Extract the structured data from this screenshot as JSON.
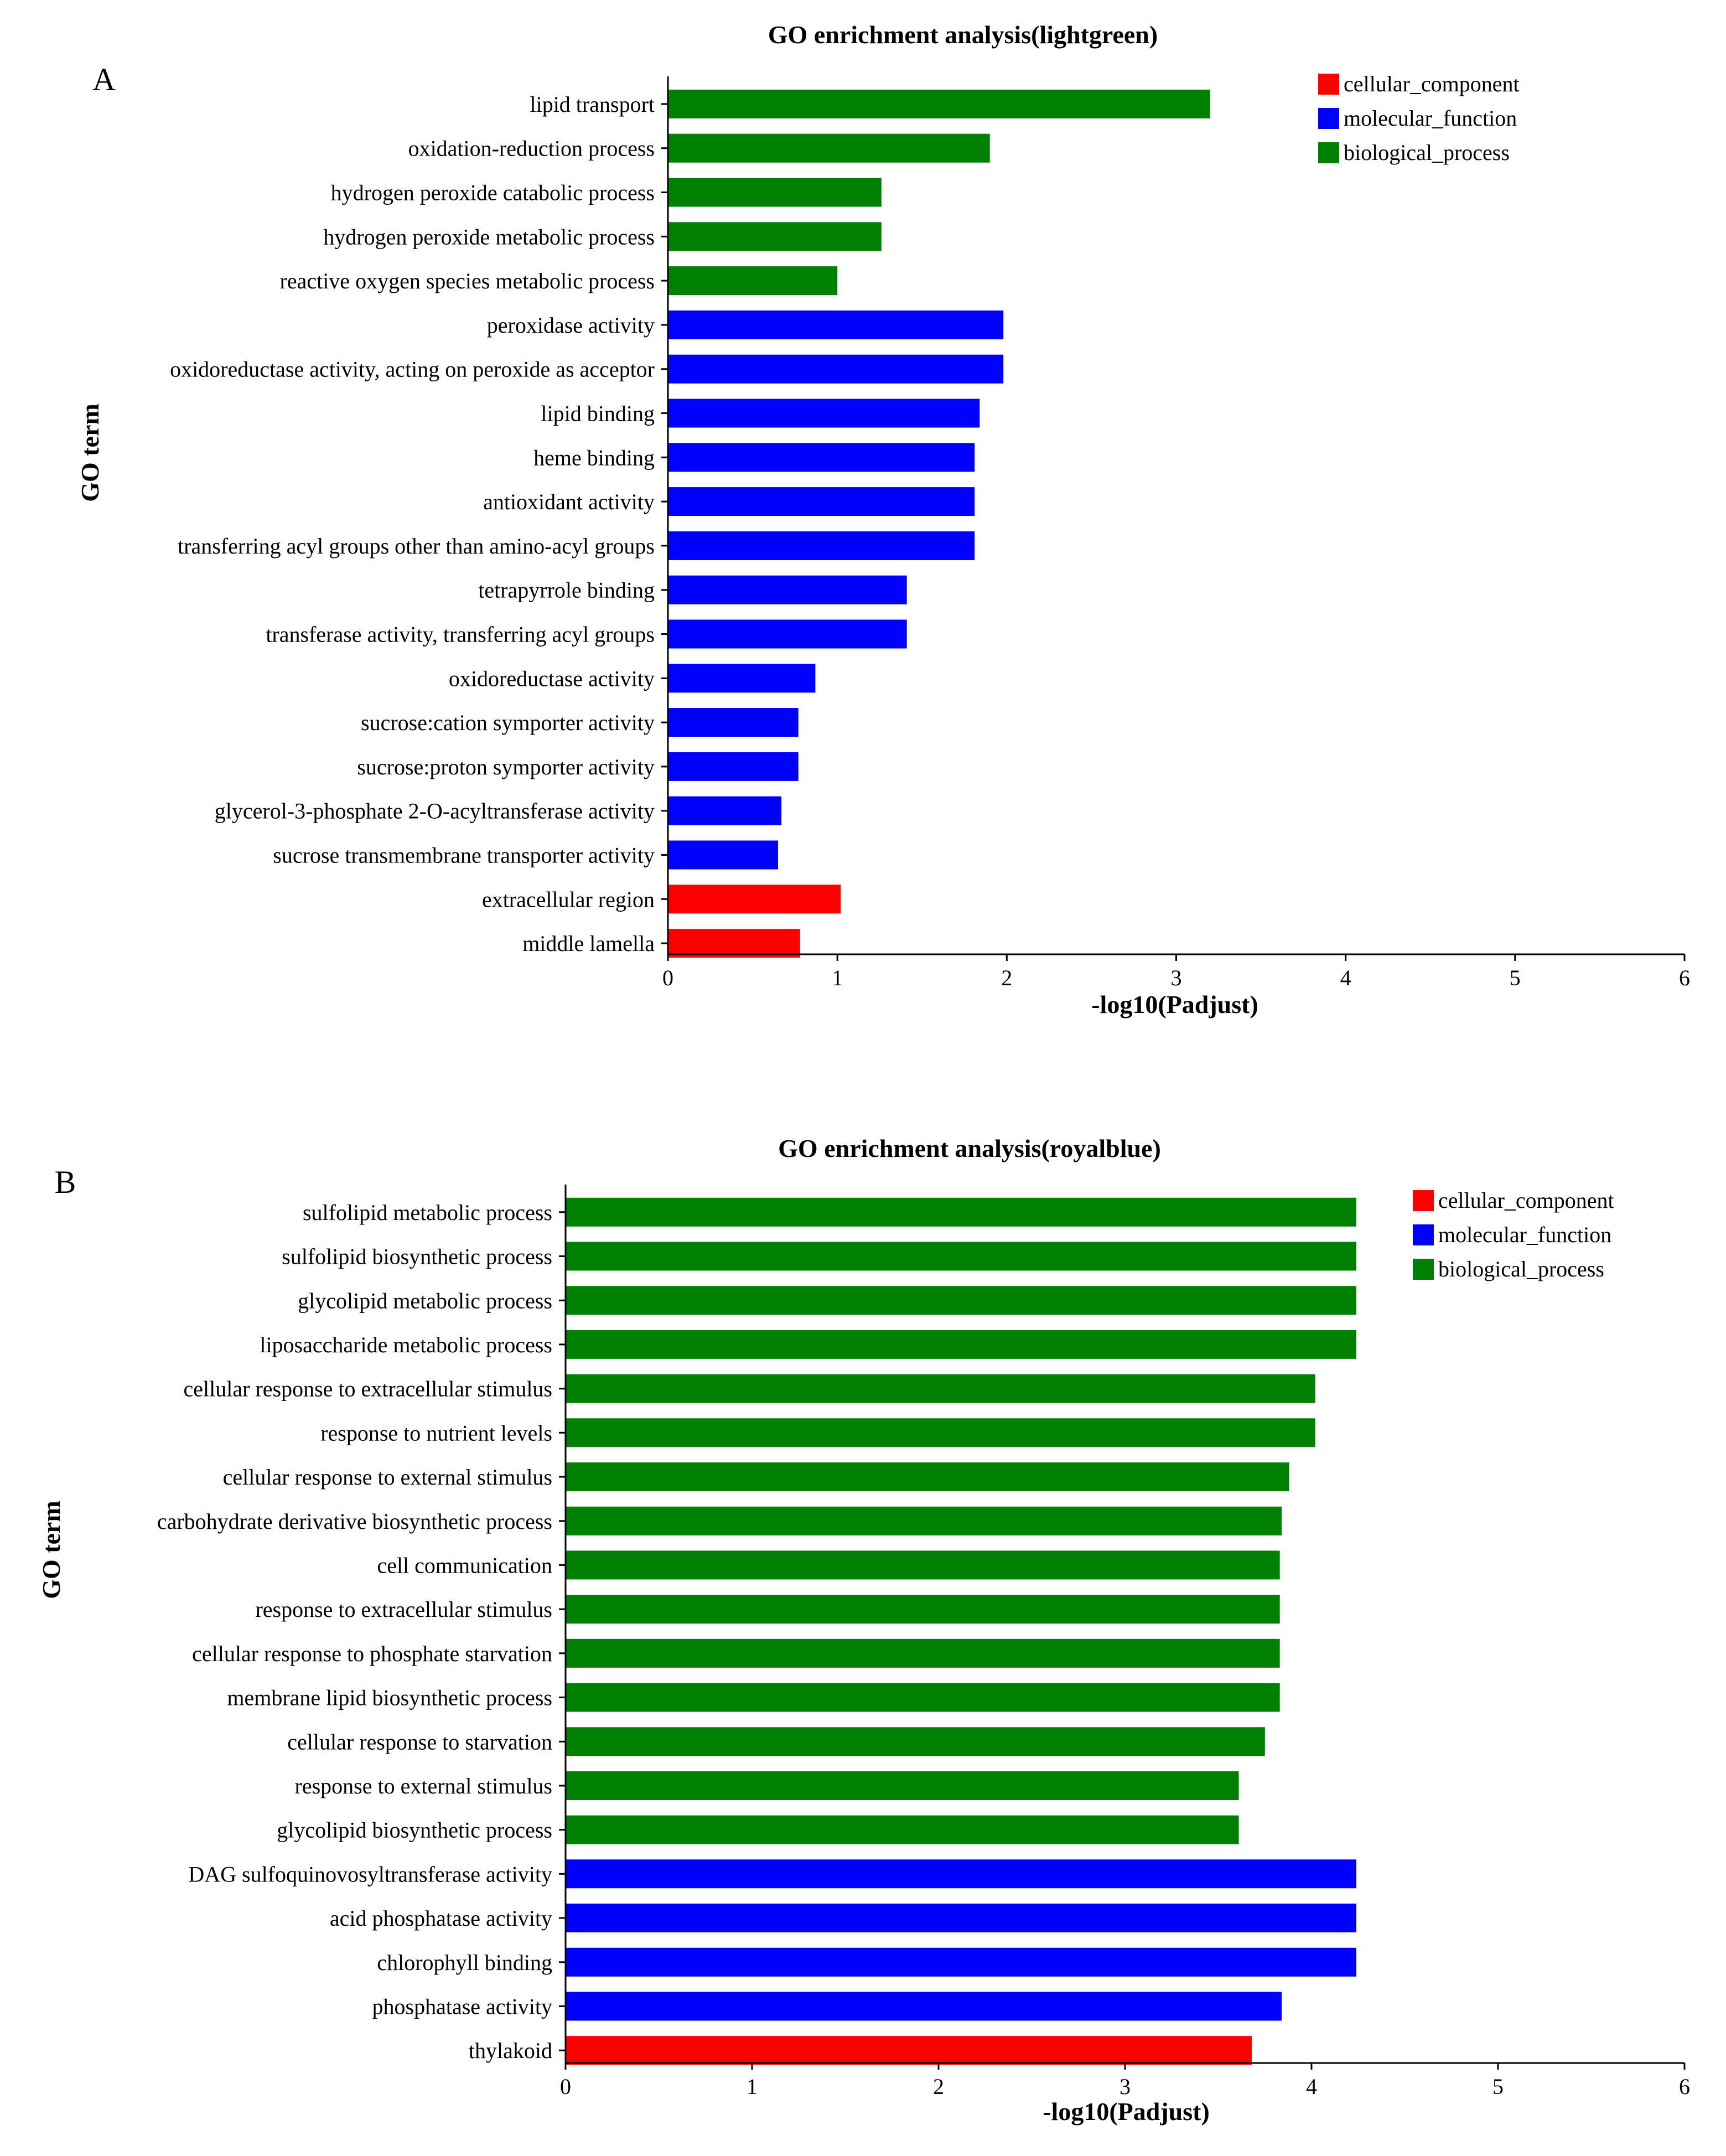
{
  "colors": {
    "cellular_component": "#ff0000",
    "molecular_function": "#0000ff",
    "biological_process": "#008000",
    "axis": "#000000"
  },
  "chart_data": [
    {
      "panel_label": "A",
      "type": "bar",
      "orientation": "horizontal",
      "title": "GO enrichment analysis(lightgreen)",
      "xlabel": "-log10(Padjust)",
      "ylabel": "GO term",
      "xlim": [
        0,
        6
      ],
      "xticks": [
        "0",
        "1",
        "2",
        "3",
        "4",
        "5",
        "6"
      ],
      "grid": false,
      "legend_position": "top-right",
      "legend": [
        {
          "label": "cellular_component",
          "key": "cellular_component"
        },
        {
          "label": "molecular_function",
          "key": "molecular_function"
        },
        {
          "label": "biological_process",
          "key": "biological_process"
        }
      ],
      "categories": [
        "lipid transport",
        "oxidation-reduction process",
        "hydrogen peroxide catabolic process",
        "hydrogen peroxide metabolic process",
        "reactive oxygen species metabolic process",
        "peroxidase activity",
        "oxidoreductase activity, acting on peroxide as acceptor",
        "lipid binding",
        "heme binding",
        "antioxidant activity",
        "transferring acyl groups other than amino-acyl groups",
        "tetrapyrrole binding",
        "transferase activity, transferring acyl groups",
        "oxidoreductase activity",
        "sucrose:cation symporter activity",
        "sucrose:proton symporter activity",
        "glycerol-3-phosphate 2-O-acyltransferase activity",
        "sucrose transmembrane transporter activity",
        "extracellular region",
        "middle lamella"
      ],
      "values": [
        3.2,
        1.9,
        1.26,
        1.26,
        1.0,
        1.98,
        1.98,
        1.84,
        1.81,
        1.81,
        1.81,
        1.41,
        1.41,
        0.87,
        0.77,
        0.77,
        0.67,
        0.65,
        1.02,
        0.78
      ],
      "groups": [
        "biological_process",
        "biological_process",
        "biological_process",
        "biological_process",
        "biological_process",
        "molecular_function",
        "molecular_function",
        "molecular_function",
        "molecular_function",
        "molecular_function",
        "molecular_function",
        "molecular_function",
        "molecular_function",
        "molecular_function",
        "molecular_function",
        "molecular_function",
        "molecular_function",
        "molecular_function",
        "cellular_component",
        "cellular_component"
      ]
    },
    {
      "panel_label": "B",
      "type": "bar",
      "orientation": "horizontal",
      "title": "GO enrichment analysis(royalblue)",
      "xlabel": "-log10(Padjust)",
      "ylabel": "GO term",
      "xlim": [
        0,
        6
      ],
      "xticks": [
        "0",
        "1",
        "2",
        "3",
        "4",
        "5",
        "6"
      ],
      "grid": false,
      "legend_position": "top-right",
      "legend": [
        {
          "label": "cellular_component",
          "key": "cellular_component"
        },
        {
          "label": "molecular_function",
          "key": "molecular_function"
        },
        {
          "label": "biological_process",
          "key": "biological_process"
        }
      ],
      "categories": [
        "sulfolipid metabolic process",
        "sulfolipid biosynthetic process",
        "glycolipid metabolic process",
        "liposaccharide metabolic process",
        "cellular response to extracellular stimulus",
        "response to nutrient levels",
        "cellular response to external stimulus",
        "carbohydrate derivative biosynthetic process",
        "cell communication",
        "response to extracellular stimulus",
        "cellular response to phosphate starvation",
        "membrane lipid biosynthetic process",
        "cellular response to starvation",
        "response to external stimulus",
        "glycolipid biosynthetic process",
        "DAG sulfoquinovosyltransferase activity",
        "acid phosphatase activity",
        "chlorophyll binding",
        "phosphatase activity",
        "thylakoid"
      ],
      "values": [
        4.24,
        4.24,
        4.24,
        4.24,
        4.02,
        4.02,
        3.88,
        3.84,
        3.83,
        3.83,
        3.83,
        3.83,
        3.75,
        3.61,
        3.61,
        4.24,
        4.24,
        4.24,
        3.84,
        3.68
      ],
      "groups": [
        "biological_process",
        "biological_process",
        "biological_process",
        "biological_process",
        "biological_process",
        "biological_process",
        "biological_process",
        "biological_process",
        "biological_process",
        "biological_process",
        "biological_process",
        "biological_process",
        "biological_process",
        "biological_process",
        "biological_process",
        "molecular_function",
        "molecular_function",
        "molecular_function",
        "molecular_function",
        "cellular_component"
      ]
    }
  ]
}
